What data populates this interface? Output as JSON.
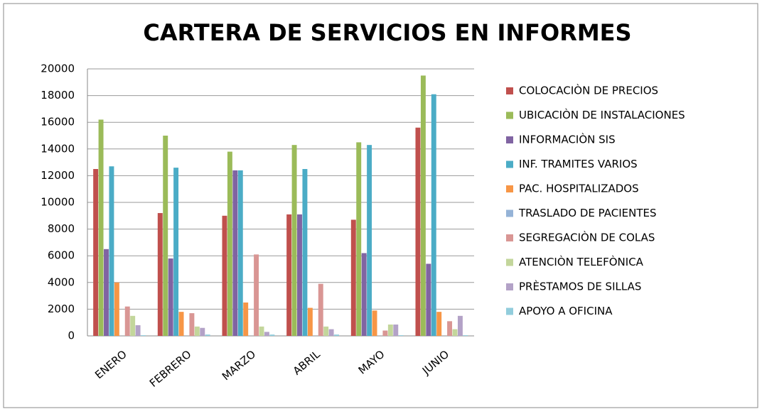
{
  "chart_data": {
    "type": "bar",
    "title": "CARTERA DE SERVICIOS EN INFORMES",
    "categories": [
      "ENERO",
      "FEBRERO",
      "MARZO",
      "ABRIL",
      "MAYO",
      "JUNIO"
    ],
    "series": [
      {
        "name": "COLOCACIÒN DE PRECIOS",
        "color": "#c0504d",
        "values": [
          12500,
          9200,
          9000,
          9100,
          8700,
          15600
        ]
      },
      {
        "name": "UBICACIÒN DE INSTALACIONES",
        "color": "#9bbb59",
        "values": [
          16200,
          15000,
          13800,
          14300,
          14500,
          19500
        ]
      },
      {
        "name": "INFORMACIÒN SIS",
        "color": "#8064a2",
        "values": [
          6500,
          5800,
          12400,
          9100,
          6200,
          5400
        ]
      },
      {
        "name": "INF. TRAMITES VARIOS",
        "color": "#4bacc6",
        "values": [
          12700,
          12600,
          12400,
          12500,
          14300,
          18100
        ]
      },
      {
        "name": "PAC. HOSPITALIZADOS",
        "color": "#f79646",
        "values": [
          4000,
          1800,
          2500,
          2100,
          1900,
          1800
        ]
      },
      {
        "name": "TRASLADO DE PACIENTES",
        "color": "#95b3d7",
        "values": [
          0,
          0,
          0,
          0,
          0,
          0
        ]
      },
      {
        "name": "SEGREGACIÒN DE COLAS",
        "color": "#d99694",
        "values": [
          2200,
          1700,
          6100,
          3900,
          400,
          1100
        ]
      },
      {
        "name": "ATENCIÒN TELEFÒNICA",
        "color": "#c3d69b",
        "values": [
          1500,
          700,
          700,
          700,
          850,
          500
        ]
      },
      {
        "name": "PRÈSTAMOS DE SILLAS",
        "color": "#b3a2c7",
        "values": [
          800,
          600,
          300,
          500,
          850,
          1500
        ]
      },
      {
        "name": "APOYO A OFICINA",
        "color": "#92cddc",
        "values": [
          50,
          100,
          100,
          100,
          50,
          50
        ]
      }
    ],
    "ylim": [
      0,
      20000
    ],
    "yticks": [
      0,
      2000,
      4000,
      6000,
      8000,
      10000,
      12000,
      14000,
      16000,
      18000,
      20000
    ],
    "grid": true,
    "legend": "right"
  }
}
